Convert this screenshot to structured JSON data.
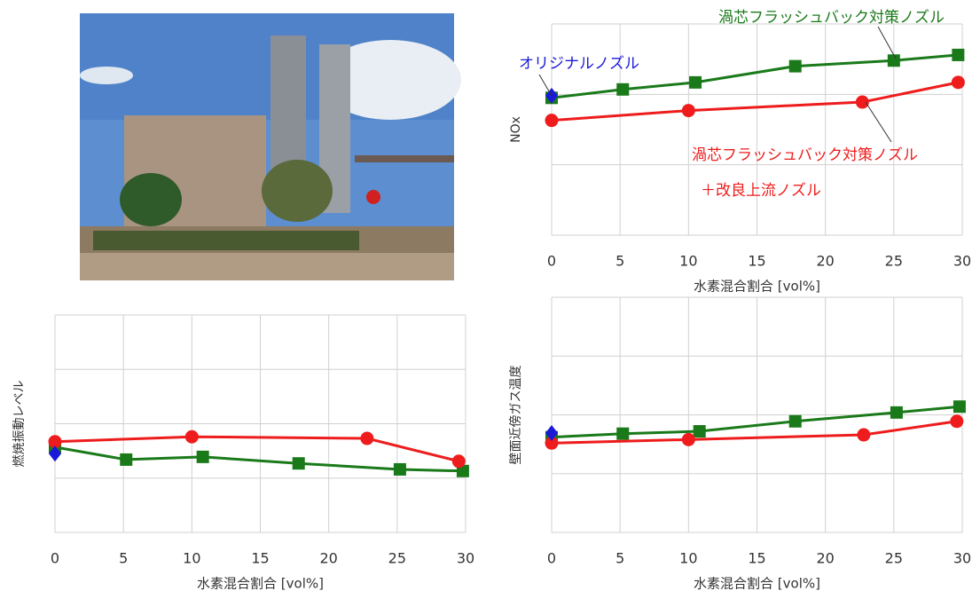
{
  "chart_data": [
    {
      "type": "line",
      "y_label": "NOx",
      "x_label": "水素混合割合 [vol%]",
      "xlim": [
        0,
        30
      ],
      "xticks": [
        0,
        5,
        10,
        15,
        20,
        25,
        30
      ],
      "ylim": [
        0,
        3
      ],
      "yticks": [
        0,
        1,
        2,
        3
      ],
      "grid": true,
      "series": [
        {
          "color": "#1a7a1a",
          "marker": "square",
          "x": [
            0,
            5.2,
            10.5,
            17.8,
            25,
            29.7
          ],
          "values": [
            1.95,
            2.07,
            2.17,
            2.4,
            2.48,
            2.56
          ]
        },
        {
          "color": "#ee1c1c",
          "marker": "circle",
          "x": [
            0,
            10,
            22.7,
            29.7
          ],
          "values": [
            1.63,
            1.77,
            1.89,
            2.17
          ]
        },
        {
          "color": "#1a1ad8",
          "marker": "diamond",
          "x": [
            0
          ],
          "values": [
            1.98
          ]
        }
      ],
      "annotations": [
        {
          "text": "オリジナルノズル",
          "color": "#1a1ad8"
        },
        {
          "text": "渦芯フラッシュバック対策ノズル",
          "color": "#1a7a1a"
        },
        {
          "text": "渦芯フラッシュバック対策ノズル",
          "color": "#ee1c1c"
        },
        {
          "text": "＋改良上流ノズル",
          "color": "#ee1c1c"
        }
      ]
    },
    {
      "type": "line",
      "y_label": "燃焼振動レベル",
      "x_label": "水素混合割合 [vol%]",
      "xlim": [
        0,
        30
      ],
      "xticks": [
        0,
        5,
        10,
        15,
        20,
        25,
        30
      ],
      "ylim": [
        0,
        4
      ],
      "yticks": [
        0,
        1,
        2,
        3,
        4
      ],
      "grid": true,
      "series": [
        {
          "color": "#1a7a1a",
          "marker": "square",
          "x": [
            0,
            5.2,
            10.8,
            17.8,
            25.2,
            29.8
          ],
          "values": [
            1.57,
            1.34,
            1.39,
            1.27,
            1.16,
            1.13
          ]
        },
        {
          "color": "#ee1c1c",
          "marker": "circle",
          "x": [
            0,
            10,
            22.8,
            29.5
          ],
          "values": [
            1.67,
            1.76,
            1.73,
            1.31
          ]
        },
        {
          "color": "#1a1ad8",
          "marker": "diamond",
          "x": [
            0
          ],
          "values": [
            1.45
          ]
        }
      ]
    },
    {
      "type": "line",
      "y_label": "壁面近傍ガス温度",
      "x_label": "水素混合割合 [vol%]",
      "xlim": [
        0,
        30
      ],
      "xticks": [
        0,
        5,
        10,
        15,
        20,
        25,
        30
      ],
      "ylim": [
        0,
        4
      ],
      "yticks": [
        0,
        1,
        2,
        3,
        4
      ],
      "grid": true,
      "series": [
        {
          "color": "#1a7a1a",
          "marker": "square",
          "x": [
            0,
            5.2,
            10.8,
            17.8,
            25.2,
            29.8
          ],
          "values": [
            1.62,
            1.68,
            1.72,
            1.89,
            2.04,
            2.14
          ]
        },
        {
          "color": "#ee1c1c",
          "marker": "circle",
          "x": [
            0,
            10,
            22.8,
            29.6
          ],
          "values": [
            1.52,
            1.58,
            1.66,
            1.89
          ]
        },
        {
          "color": "#1a1ad8",
          "marker": "diamond",
          "x": [
            0
          ],
          "values": [
            1.69
          ]
        }
      ]
    }
  ]
}
